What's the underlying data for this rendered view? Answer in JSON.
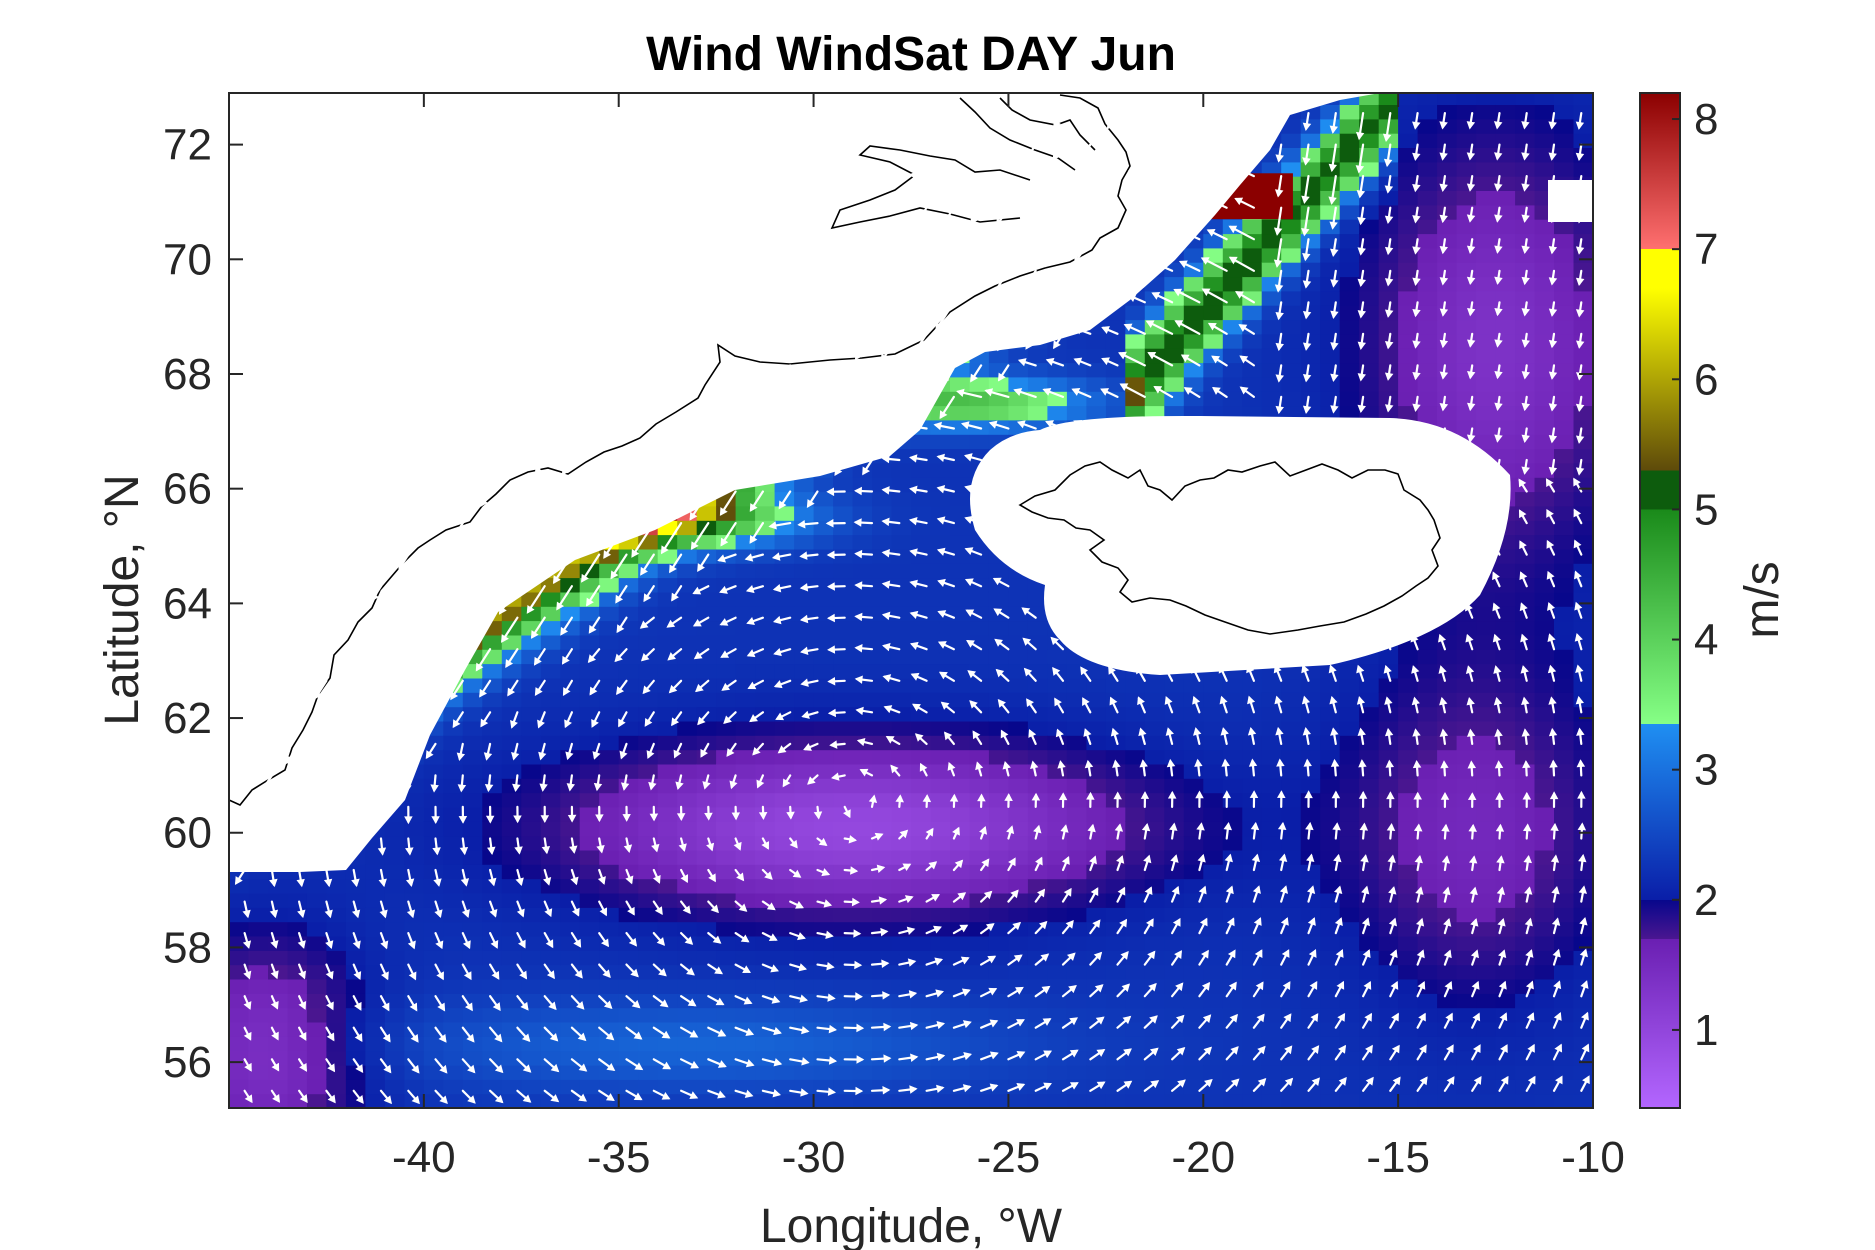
{
  "title": "Wind WindSat DAY Jun",
  "map_data": {
    "type": "heatmap",
    "region": "Denmark Strait / Iceland / Irminger Sea",
    "xlabel": "Longitude, °W",
    "ylabel": "Latitude, °N",
    "xlim": [
      -45,
      -10
    ],
    "ylim": [
      55.2,
      72.9
    ],
    "x_ticks": [
      -40,
      -35,
      -30,
      -25,
      -20,
      -15,
      -10
    ],
    "y_ticks": [
      56,
      58,
      60,
      62,
      64,
      66,
      68,
      70,
      72
    ],
    "x_tick_labels": [
      "-40",
      "-35",
      "-30",
      "-25",
      "-20",
      "-15",
      "-10"
    ],
    "y_tick_labels": [
      "56",
      "58",
      "60",
      "62",
      "64",
      "66",
      "68",
      "70",
      "72"
    ],
    "colorbar": {
      "label": "m/s",
      "range": [
        0.4,
        8.2
      ],
      "ticks": [
        1,
        2,
        3,
        4,
        5,
        6,
        7,
        8
      ],
      "tick_labels": [
        "1",
        "2",
        "3",
        "4",
        "5",
        "6",
        "7",
        "8"
      ],
      "segments": [
        {
          "from": 0.4,
          "to": 1.7,
          "start": "#b366ff",
          "end": "#6a1fb2"
        },
        {
          "from": 1.7,
          "to": 2.0,
          "start": "#4a1690",
          "end": "#07078c"
        },
        {
          "from": 2.0,
          "to": 3.35,
          "start": "#0a1ea8",
          "end": "#1f8ff2"
        },
        {
          "from": 3.35,
          "to": 5.0,
          "start": "#86ff86",
          "end": "#1a8a1a"
        },
        {
          "from": 5.0,
          "to": 5.3,
          "start": "#0d5c0d",
          "end": "#0d5c0d"
        },
        {
          "from": 5.3,
          "to": 6.7,
          "start": "#5e4a0a",
          "end": "#ffff00"
        },
        {
          "from": 6.7,
          "to": 7.0,
          "start": "#ffff00",
          "end": "#ffff00"
        },
        {
          "from": 7.0,
          "to": 8.2,
          "start": "#ff7070",
          "end": "#8b0000"
        }
      ]
    },
    "land_color": "#ffffff",
    "coastline_color": "#000000",
    "vector_color": "#ffffff",
    "features": [
      "Greenland coastline",
      "Iceland coastline",
      "wind vectors"
    ]
  }
}
